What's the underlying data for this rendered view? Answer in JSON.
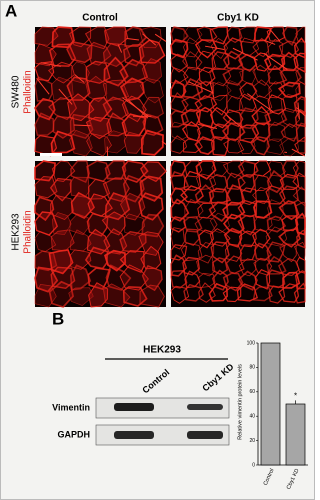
{
  "panel_a": {
    "label": "A",
    "columns": [
      "Control",
      "Cby1 KD"
    ],
    "rows": [
      {
        "cell_line": "SW480",
        "stain": "Phalloidin"
      },
      {
        "cell_line": "HEK293",
        "stain": "Phalloidin"
      }
    ]
  },
  "panel_b": {
    "label": "B",
    "cell_line": "HEK293",
    "lanes": [
      "Control",
      "Cby1 KD"
    ],
    "blots": [
      "Vimentin",
      "GAPDH"
    ]
  },
  "chart_data": {
    "type": "bar",
    "y_label": "Relative vimentin protein levels",
    "categories": [
      "Control",
      "Cby1 KD"
    ],
    "values": [
      100,
      50
    ],
    "errors": [
      0,
      3
    ],
    "color": "#a6a6a6",
    "annotation": "*",
    "ylim": [
      0,
      100
    ],
    "yticks": [
      0,
      20,
      40,
      60,
      80,
      100
    ]
  }
}
